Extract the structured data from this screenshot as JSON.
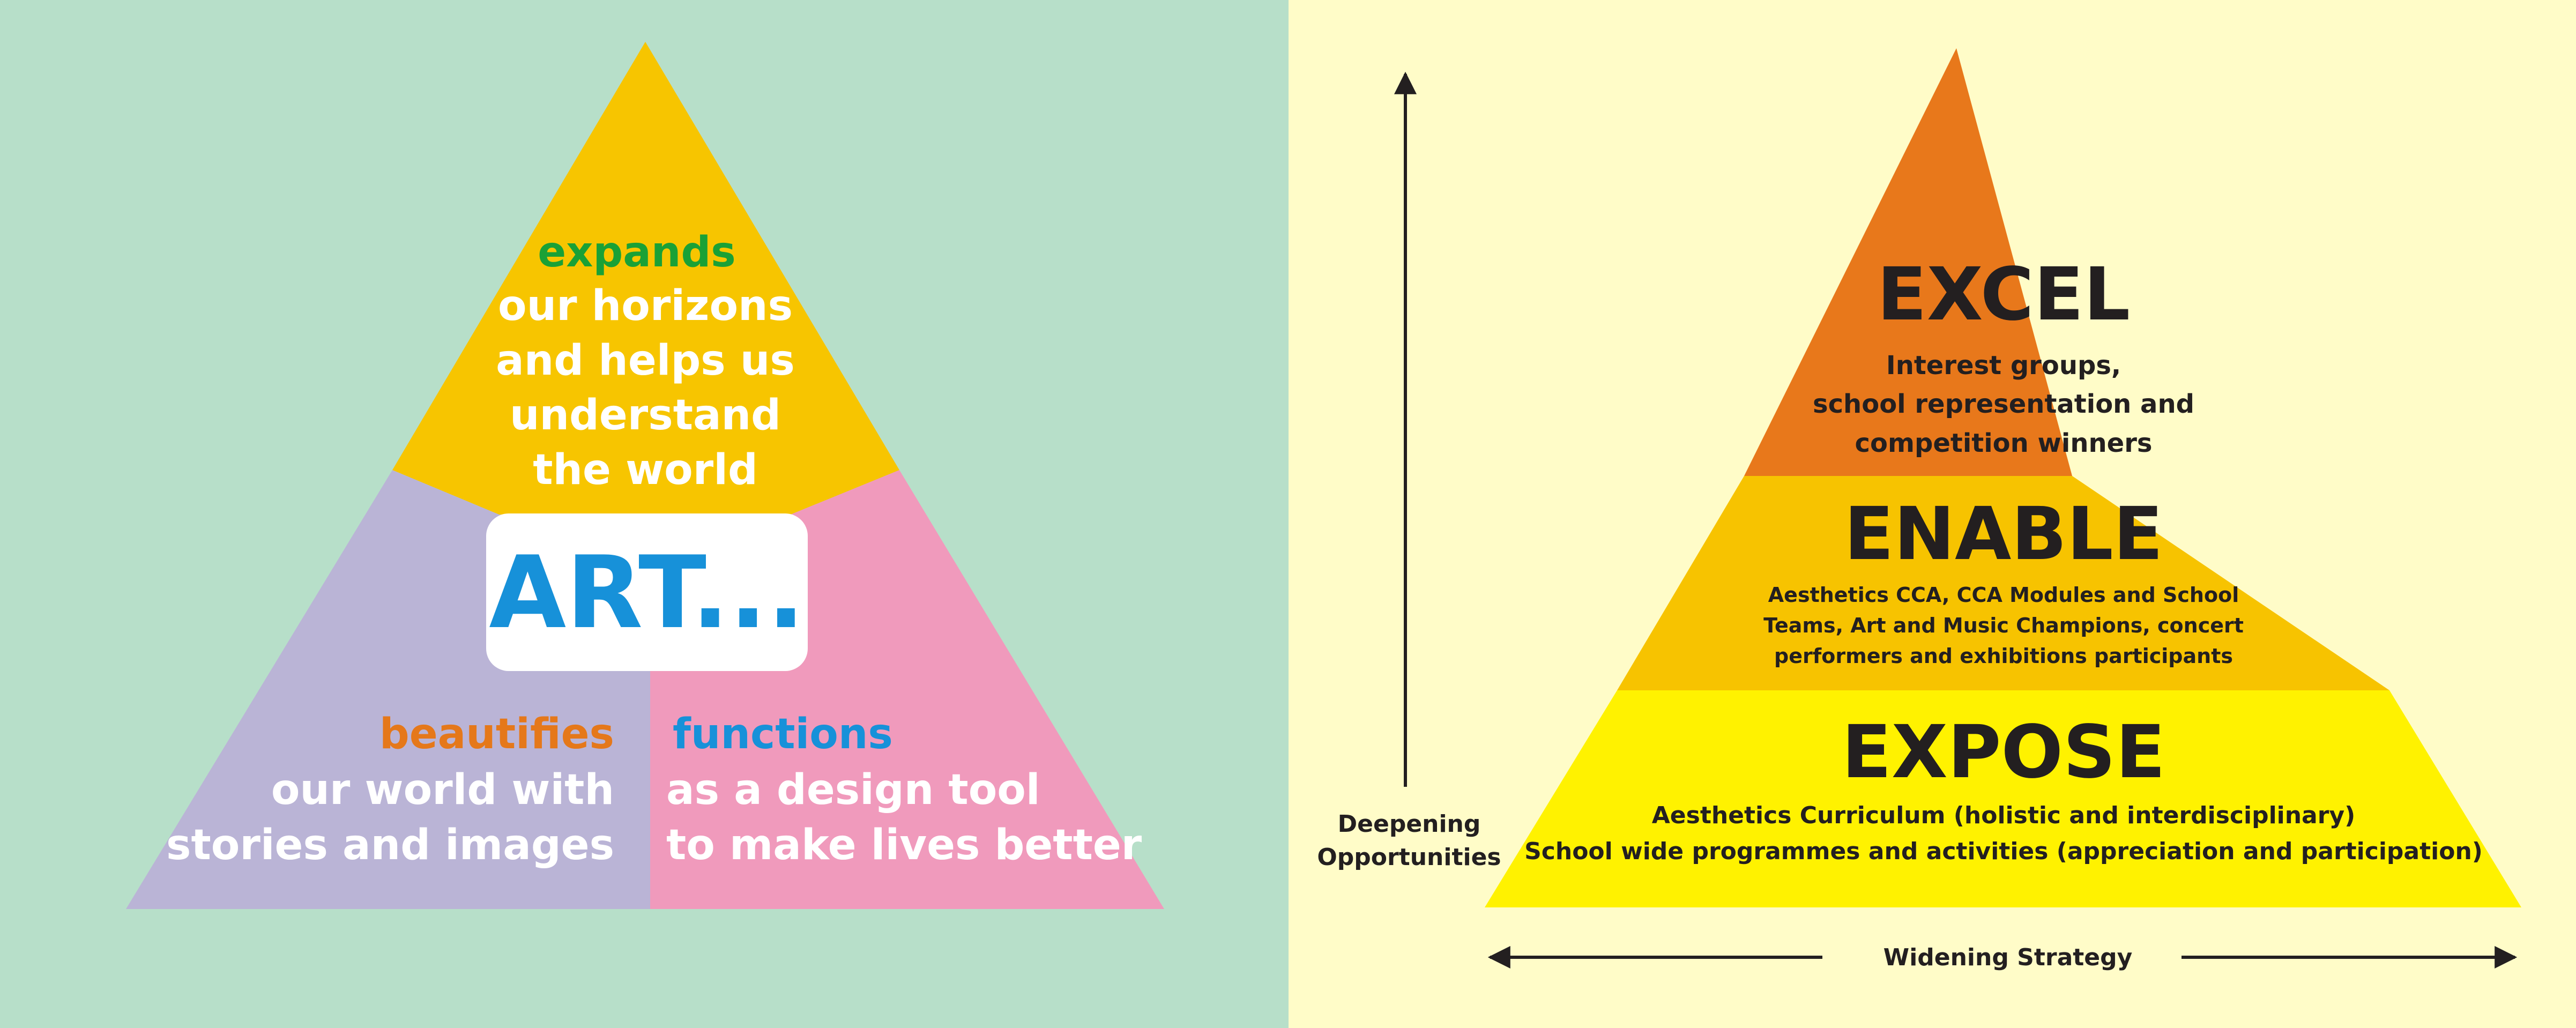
{
  "colors": {
    "left_bg": "#B7DFC9",
    "right_bg": "#FFFCC8",
    "yellow": "#F7C500",
    "purple": "#BAB4D6",
    "pink": "#F09ABC",
    "green_text": "#1AA136",
    "orange_text": "#E5781A",
    "blue_text": "#1791D9",
    "white": "#FFFFFF",
    "excel": "#E8781B",
    "enable": "#F7C300",
    "expose": "#FFF200",
    "dark": "#231F20"
  },
  "left": {
    "top": {
      "keyword": "expands",
      "lines": [
        "our horizons",
        "and helps us",
        "understand",
        "the world"
      ]
    },
    "center": {
      "label": "ART..."
    },
    "bottom_left": {
      "keyword": "beautifies",
      "lines": [
        "our world with",
        "stories and images"
      ]
    },
    "bottom_right": {
      "keyword": "functions",
      "lines": [
        "as a design tool",
        "to make lives better"
      ]
    }
  },
  "right": {
    "tiers": [
      {
        "title": "EXCEL",
        "lines": [
          "Interest groups,",
          "school representation and",
          "competition winners"
        ]
      },
      {
        "title": "ENABLE",
        "lines": [
          "Aesthetics CCA, CCA Modules and School",
          "Teams, Art and Music Champions, concert",
          "performers and exhibitions participants"
        ]
      },
      {
        "title": "EXPOSE",
        "lines": [
          "Aesthetics Curriculum (holistic and interdisciplinary)",
          "School wide programmes and activities (appreciation and participation)"
        ]
      }
    ],
    "vertical_axis": {
      "lines": [
        "Deepening",
        "Opportunities"
      ]
    },
    "horizontal_axis": {
      "label": "Widening Strategy"
    }
  }
}
